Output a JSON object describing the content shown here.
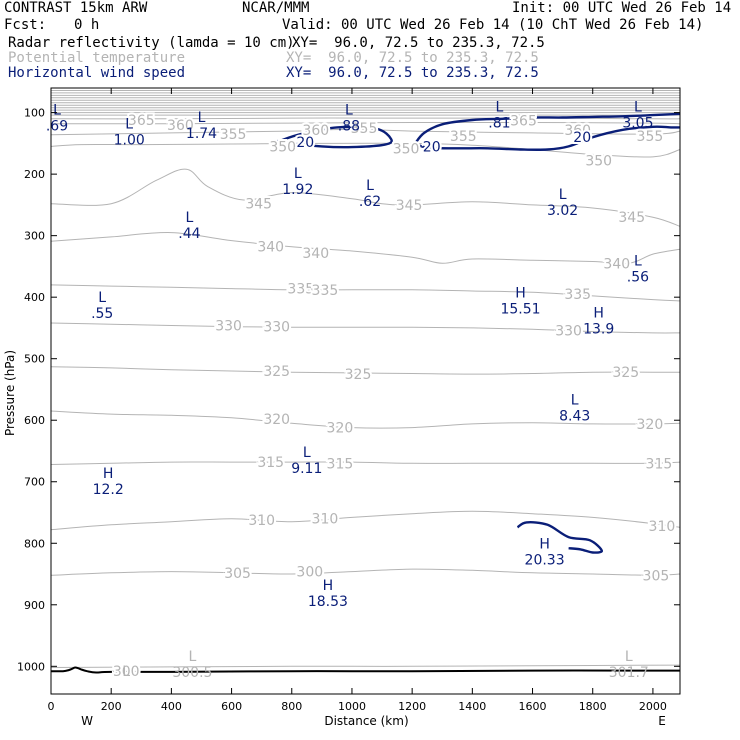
{
  "header": {
    "title": "CONTRAST 15km ARW",
    "center": "NCAR/MMM",
    "init": "Init: 00 UTC Wed 26 Feb 14",
    "fcst_label": "Fcst:",
    "fcst_value": "0 h",
    "valid": "Valid: 00 UTC Wed 26 Feb 14 (10 ChT Wed 26 Feb 14)",
    "fields": [
      {
        "name": "Radar reflectivity (lamda = 10 cm)",
        "xy": "XY=  96.0, 72.5 to 235.3, 72.5",
        "color": "#000000"
      },
      {
        "name": "Potential temperature",
        "xy": "XY=  96.0, 72.5 to 235.3, 72.5",
        "color": "#b4b4b4"
      },
      {
        "name": "Horizontal wind speed",
        "xy": "XY=  96.0, 72.5 to 235.3, 72.5",
        "color": "#0a1e78"
      }
    ]
  },
  "chart_data": {
    "type": "contour",
    "xlabel": "Distance (km)",
    "ylabel": "Pressure (hPa)",
    "xlim": [
      0,
      2090
    ],
    "ylim": [
      1045,
      60
    ],
    "x_ticks": [
      0,
      200,
      400,
      600,
      800,
      1000,
      1200,
      1400,
      1600,
      1800,
      2000
    ],
    "y_ticks": [
      100,
      200,
      300,
      400,
      500,
      600,
      700,
      800,
      900,
      1000
    ],
    "x_end_labels": {
      "left": "W",
      "right": "E"
    },
    "colors": {
      "theta": "#b4b4b4",
      "wind": "#0a1e78",
      "refl": "#000000",
      "axis": "#000000"
    },
    "theta_contours": [
      {
        "level": 300,
        "x": [
          0,
          400,
          800,
          1200,
          1600,
          2090
        ],
        "p": [
          1002,
          1001,
          1000,
          1000,
          999,
          998
        ]
      },
      {
        "level": 305,
        "x": [
          0,
          200,
          400,
          600,
          800,
          1000,
          1200,
          1400,
          1600,
          1800,
          2000,
          2090
        ],
        "p": [
          852,
          848,
          846,
          848,
          850,
          846,
          842,
          844,
          848,
          850,
          852,
          850
        ]
      },
      {
        "level": 310,
        "x": [
          0,
          200,
          400,
          600,
          800,
          1000,
          1200,
          1400,
          1600,
          1800,
          2000,
          2090
        ],
        "p": [
          778,
          770,
          765,
          760,
          765,
          758,
          752,
          748,
          752,
          758,
          768,
          774
        ]
      },
      {
        "level": 315,
        "x": [
          0,
          200,
          400,
          600,
          800,
          1000,
          1200,
          1400,
          1600,
          1800,
          2000,
          2090
        ],
        "p": [
          672,
          670,
          668,
          668,
          668,
          668,
          670,
          670,
          670,
          670,
          670,
          668
        ]
      },
      {
        "level": 320,
        "x": [
          0,
          200,
          400,
          600,
          800,
          1000,
          1200,
          1400,
          1600,
          1800,
          2000,
          2090
        ],
        "p": [
          585,
          590,
          592,
          596,
          605,
          612,
          612,
          606,
          604,
          606,
          606,
          605
        ]
      },
      {
        "level": 325,
        "x": [
          0,
          200,
          400,
          600,
          800,
          1000,
          1200,
          1400,
          1600,
          1800,
          2000,
          2090
        ],
        "p": [
          513,
          515,
          518,
          520,
          522,
          523,
          524,
          525,
          524,
          522,
          522,
          522
        ]
      },
      {
        "level": 330,
        "x": [
          0,
          200,
          400,
          600,
          800,
          1000,
          1200,
          1400,
          1600,
          1800,
          2000,
          2090
        ],
        "p": [
          442,
          444,
          446,
          448,
          449,
          449,
          449,
          450,
          452,
          456,
          458,
          458
        ]
      },
      {
        "level": 335,
        "x": [
          0,
          200,
          400,
          600,
          800,
          1000,
          1200,
          1400,
          1600,
          1800,
          2000,
          2090
        ],
        "p": [
          380,
          382,
          384,
          386,
          388,
          388,
          388,
          390,
          392,
          398,
          404,
          406
        ]
      },
      {
        "level": 340,
        "x": [
          0,
          200,
          400,
          600,
          800,
          1000,
          1200,
          1300,
          1400,
          1600,
          1800,
          1920,
          2000,
          2090
        ],
        "p": [
          309,
          302,
          295,
          308,
          318,
          325,
          335,
          345,
          338,
          340,
          342,
          345,
          330,
          322
        ]
      },
      {
        "level": 345,
        "x": [
          0,
          200,
          350,
          450,
          520,
          640,
          800,
          1000,
          1100,
          1200,
          1400,
          1600,
          1800,
          2000,
          2090
        ],
        "p": [
          248,
          248,
          210,
          192,
          220,
          242,
          230,
          240,
          248,
          250,
          245,
          250,
          255,
          270,
          285
        ]
      },
      {
        "level": 350,
        "x": [
          0,
          100,
          300,
          600,
          900,
          1200,
          1400,
          1600,
          1800,
          2000,
          2090
        ],
        "p": [
          155,
          152,
          152,
          151,
          150,
          150,
          153,
          160,
          168,
          172,
          160
        ]
      },
      {
        "level": 355,
        "x": [
          0,
          400,
          800,
          1000,
          1200,
          1600,
          2000,
          2090
        ],
        "p": [
          136,
          133,
          130,
          127,
          130,
          133,
          135,
          130
        ]
      },
      {
        "level": 360,
        "x": [
          0,
          400,
          800,
          1200,
          1600,
          2000,
          2090
        ],
        "p": [
          118,
          118,
          117,
          116,
          116,
          117,
          118
        ]
      },
      {
        "level": 365,
        "x": [
          0,
          400,
          800,
          1200,
          1600,
          2000,
          2090
        ],
        "p": [
          110,
          110,
          109,
          109,
          109,
          110,
          110
        ]
      },
      {
        "level": 370,
        "x": [
          0,
          2090
        ],
        "p": [
          104,
          104
        ]
      },
      {
        "level": 375,
        "x": [
          0,
          2090
        ],
        "p": [
          100,
          100
        ]
      },
      {
        "level": 380,
        "x": [
          0,
          2090
        ],
        "p": [
          96,
          96
        ]
      },
      {
        "level": 385,
        "x": [
          0,
          2090
        ],
        "p": [
          92,
          92
        ]
      },
      {
        "level": 390,
        "x": [
          0,
          2090
        ],
        "p": [
          88,
          88
        ]
      },
      {
        "level": 395,
        "x": [
          0,
          2090
        ],
        "p": [
          84,
          84
        ]
      },
      {
        "level": 400,
        "x": [
          0,
          2090
        ],
        "p": [
          80,
          80
        ]
      },
      {
        "level": 405,
        "x": [
          0,
          2090
        ],
        "p": [
          76,
          76
        ]
      },
      {
        "level": 410,
        "x": [
          0,
          2090
        ],
        "p": [
          72,
          72
        ]
      },
      {
        "level": 415,
        "x": [
          0,
          2090
        ],
        "p": [
          68,
          68
        ]
      },
      {
        "level": 420,
        "x": [
          0,
          2090
        ],
        "p": [
          64,
          64
        ]
      }
    ],
    "theta_labels": [
      {
        "text": "365",
        "x": 300,
        "p": 112
      },
      {
        "text": "360",
        "x": 430,
        "p": 120
      },
      {
        "text": "355",
        "x": 605,
        "p": 135
      },
      {
        "text": "350",
        "x": 770,
        "p": 155
      },
      {
        "text": "360",
        "x": 880,
        "p": 128
      },
      {
        "text": "355",
        "x": 1040,
        "p": 125
      },
      {
        "text": "350",
        "x": 1180,
        "p": 158
      },
      {
        "text": "355",
        "x": 1370,
        "p": 138
      },
      {
        "text": "365",
        "x": 1570,
        "p": 113
      },
      {
        "text": "360",
        "x": 1750,
        "p": 128
      },
      {
        "text": "355",
        "x": 1990,
        "p": 138
      },
      {
        "text": "350",
        "x": 1820,
        "p": 178
      },
      {
        "text": "345",
        "x": 690,
        "p": 248
      },
      {
        "text": "345",
        "x": 1190,
        "p": 250
      },
      {
        "text": "345",
        "x": 1930,
        "p": 270
      },
      {
        "text": "340",
        "x": 730,
        "p": 318
      },
      {
        "text": "340",
        "x": 880,
        "p": 328
      },
      {
        "text": "340",
        "x": 1880,
        "p": 345
      },
      {
        "text": "335",
        "x": 830,
        "p": 386
      },
      {
        "text": "335",
        "x": 910,
        "p": 388
      },
      {
        "text": "335",
        "x": 1750,
        "p": 395
      },
      {
        "text": "330",
        "x": 590,
        "p": 446
      },
      {
        "text": "330",
        "x": 750,
        "p": 448
      },
      {
        "text": "330",
        "x": 1720,
        "p": 454
      },
      {
        "text": "325",
        "x": 750,
        "p": 520
      },
      {
        "text": "325",
        "x": 1020,
        "p": 525
      },
      {
        "text": "325",
        "x": 1910,
        "p": 522
      },
      {
        "text": "320",
        "x": 750,
        "p": 598
      },
      {
        "text": "320",
        "x": 960,
        "p": 612
      },
      {
        "text": "320",
        "x": 1990,
        "p": 606
      },
      {
        "text": "315",
        "x": 730,
        "p": 668
      },
      {
        "text": "315",
        "x": 960,
        "p": 670
      },
      {
        "text": "315",
        "x": 2020,
        "p": 670
      },
      {
        "text": "310",
        "x": 700,
        "p": 762
      },
      {
        "text": "310",
        "x": 910,
        "p": 760
      },
      {
        "text": "310",
        "x": 2030,
        "p": 772
      },
      {
        "text": "305",
        "x": 620,
        "p": 848
      },
      {
        "text": "300",
        "x": 860,
        "p": 846
      },
      {
        "text": "305",
        "x": 2010,
        "p": 852
      },
      {
        "text": "300",
        "x": 250,
        "p": 1008
      }
    ],
    "wind_contours": [
      {
        "level": 20,
        "closed": true,
        "x": [
          760,
          830,
          950,
          1080,
          1130,
          1110,
          1000,
          900,
          800,
          760
        ],
        "p": [
          146,
          135,
          124,
          126,
          143,
          152,
          156,
          155,
          150,
          146
        ]
      },
      {
        "level": 20,
        "closed": false,
        "x": [
          1210,
          1240,
          1300,
          1400,
          1500,
          1600,
          1700,
          1800,
          1900,
          2000,
          2090
        ],
        "p": [
          150,
          133,
          119,
          112,
          110,
          108,
          108,
          107,
          106,
          104,
          102
        ]
      },
      {
        "level": 20,
        "closed": false,
        "x": [
          1210,
          1250,
          1350,
          1450,
          1560,
          1650,
          1720,
          1800,
          1900,
          2000,
          2060,
          2090
        ],
        "p": [
          150,
          157,
          158,
          158,
          160,
          160,
          155,
          140,
          128,
          123,
          124,
          124
        ]
      },
      {
        "level": 20,
        "closed": false,
        "x": [
          1550,
          1580,
          1650,
          1720,
          1790,
          1830,
          1800,
          1760,
          1720
        ],
        "p": [
          774,
          766,
          770,
          790,
          795,
          812,
          815,
          810,
          808
        ]
      }
    ],
    "wind_contour_labels": [
      {
        "text": "20",
        "x": 845,
        "p": 148
      },
      {
        "text": "20",
        "x": 1265,
        "p": 155
      },
      {
        "text": "20",
        "x": 1765,
        "p": 140
      }
    ],
    "extrema": [
      {
        "type": "L",
        "value": ".69",
        "x": 20,
        "p": 95
      },
      {
        "type": "L",
        "value": "1.00",
        "x": 260,
        "p": 118
      },
      {
        "type": "L",
        "value": "1.74",
        "x": 500,
        "p": 107
      },
      {
        "type": "L",
        "value": ".88",
        "x": 990,
        "p": 95
      },
      {
        "type": "L",
        "value": ".81",
        "x": 1490,
        "p": 90
      },
      {
        "type": "L",
        "value": "3.05",
        "x": 1950,
        "p": 90
      },
      {
        "type": "L",
        "value": "1.92",
        "x": 820,
        "p": 198
      },
      {
        "type": "L",
        "value": ".62",
        "x": 1060,
        "p": 218
      },
      {
        "type": "L",
        "value": "3.02",
        "x": 1700,
        "p": 232
      },
      {
        "type": "L",
        "value": ".44",
        "x": 460,
        "p": 270
      },
      {
        "type": "L",
        "value": ".56",
        "x": 1950,
        "p": 340
      },
      {
        "type": "L",
        "value": ".55",
        "x": 170,
        "p": 400
      },
      {
        "type": "H",
        "value": "15.51",
        "x": 1560,
        "p": 392
      },
      {
        "type": "H",
        "value": "13.9",
        "x": 1820,
        "p": 425
      },
      {
        "type": "L",
        "value": "8.43",
        "x": 1740,
        "p": 566
      },
      {
        "type": "L",
        "value": "9.11",
        "x": 850,
        "p": 652
      },
      {
        "type": "H",
        "value": "12.2",
        "x": 190,
        "p": 686
      },
      {
        "type": "H",
        "value": "20.33",
        "x": 1640,
        "p": 800
      },
      {
        "type": "H",
        "value": "18.53",
        "x": 920,
        "p": 868
      },
      {
        "type": "L",
        "value": "300.5",
        "x": 470,
        "p": 983,
        "gray": true
      },
      {
        "type": "L",
        "value": "301.7",
        "x": 1920,
        "p": 983,
        "gray": true
      },
      {
        "type": "L",
        "value": "300",
        "x": 250,
        "p": 1008,
        "gray": true,
        "hide_value": true
      }
    ],
    "surface_pressure": {
      "x": [
        0,
        40,
        60,
        70,
        80,
        90,
        100,
        120,
        150,
        200,
        400,
        800,
        1200,
        1600,
        2000,
        2090
      ],
      "p": [
        1008,
        1008,
        1006,
        1004,
        1002,
        1003,
        1005,
        1008,
        1010,
        1009,
        1009,
        1008,
        1008,
        1007,
        1007,
        1007
      ]
    }
  }
}
